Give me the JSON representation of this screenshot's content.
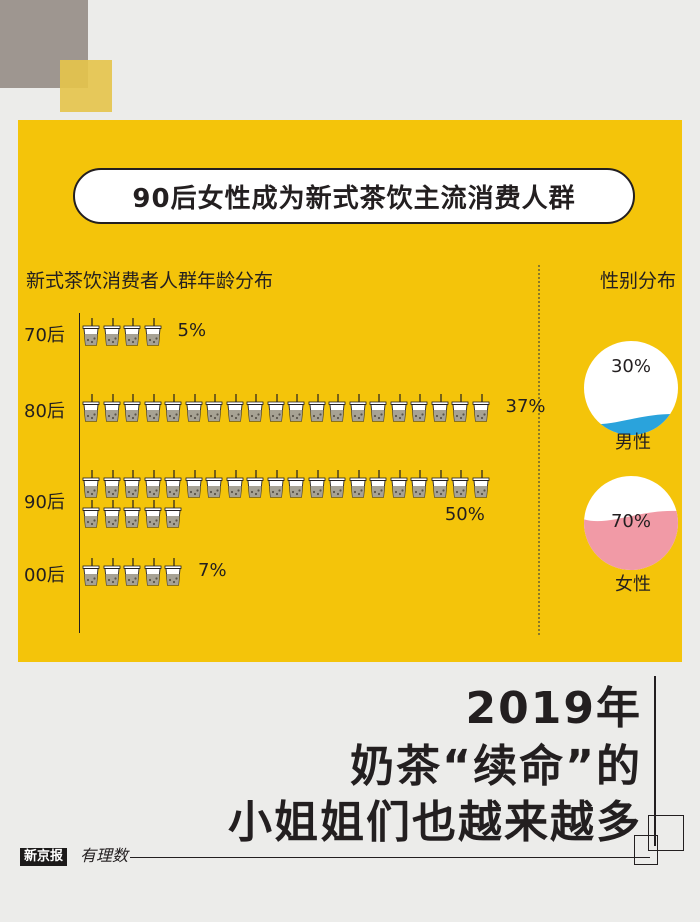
{
  "infographic": {
    "title": "90后女性成为新式茶饮主流消费人群",
    "age_section_title": "新式茶饮消费者人群年龄分布",
    "gender_section_title": "性别分布",
    "headline": [
      "2019年",
      "奶茶“续命”的",
      "小姐姐们也越来越多"
    ],
    "brand_name": "新京报",
    "brand_script": "有理数",
    "colors": {
      "panel": "#f4c40a",
      "male": "#2aa3dc",
      "female": "#f19aa6",
      "cup": "#a7a294"
    }
  },
  "chart_data": [
    {
      "type": "bar",
      "title": "新式茶饮消费者人群年龄分布",
      "categories": [
        "70后",
        "80后",
        "90后",
        "00后"
      ],
      "values": [
        5,
        37,
        50,
        7
      ],
      "value_labels": [
        "5%",
        "37%",
        "50%",
        "7%"
      ],
      "unit": "%"
    },
    {
      "type": "pie",
      "title": "性别分布",
      "slices": [
        {
          "label": "男性",
          "value": 30,
          "value_label": "30%"
        },
        {
          "label": "女性",
          "value": 70,
          "value_label": "70%"
        }
      ]
    }
  ]
}
